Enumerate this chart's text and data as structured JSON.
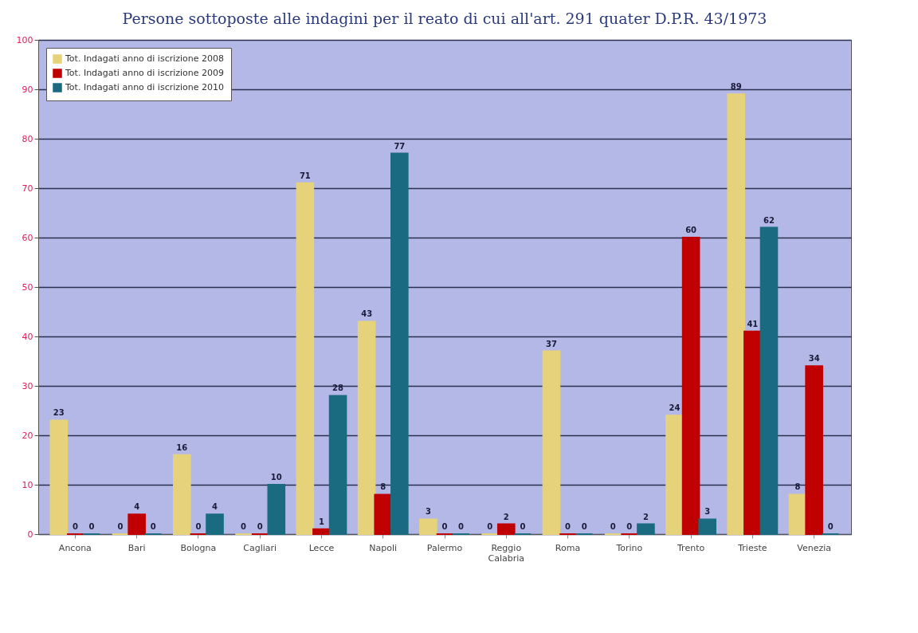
{
  "chart_data": {
    "type": "bar",
    "title": "Persone sottoposte alle indagini per il reato di cui all'art. 291 quater D.P.R. 43/1973",
    "categories": [
      "Ancona",
      "Bari",
      "Bologna",
      "Cagliari",
      "Lecce",
      "Napoli",
      "Palermo",
      "Reggio Calabria",
      "Roma",
      "Torino",
      "Trento",
      "Trieste",
      "Venezia"
    ],
    "series": [
      {
        "name": "Tot. Indagati anno di iscrizione 2008",
        "color": "#e6d27a",
        "values": [
          23,
          0,
          16,
          0,
          71,
          43,
          3,
          0,
          37,
          0,
          24,
          89,
          8
        ]
      },
      {
        "name": "Tot. Indagati anno di iscrizione 2009",
        "color": "#c00000",
        "values": [
          0,
          4,
          0,
          0,
          1,
          8,
          0,
          2,
          0,
          0,
          60,
          41,
          34
        ]
      },
      {
        "name": "Tot. Indagati anno di iscrizione 2010",
        "color": "#1a6a80",
        "values": [
          0,
          0,
          4,
          10,
          28,
          77,
          0,
          0,
          0,
          2,
          3,
          62,
          0
        ]
      }
    ],
    "ylim": [
      0,
      100
    ],
    "yticks": [
      0,
      10,
      20,
      30,
      40,
      50,
      60,
      70,
      80,
      90,
      100
    ],
    "grid": "y",
    "legend": "top left",
    "data_labels": true
  }
}
